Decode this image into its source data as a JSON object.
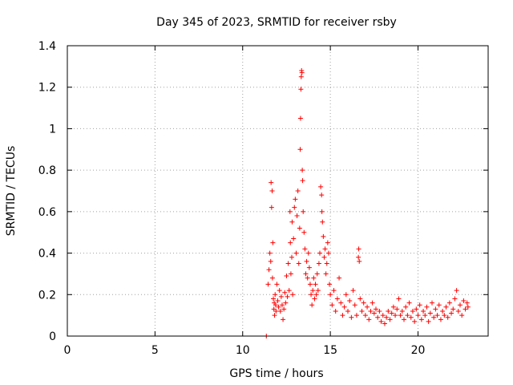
{
  "chart_data": {
    "type": "scatter",
    "title": "Day 345 of 2023, SRMTID for receiver rsby",
    "xlabel": "GPS time / hours",
    "ylabel": "SRMTID / TECUs",
    "xlim": [
      0,
      24
    ],
    "ylim": [
      0,
      1.4
    ],
    "xticks": [
      0,
      5,
      10,
      15,
      20
    ],
    "xtick_labels": [
      "0",
      "5",
      "10",
      "15",
      "20"
    ],
    "yticks": [
      0,
      0.2,
      0.4,
      0.6,
      0.8,
      1.0,
      1.2,
      1.4
    ],
    "ytick_labels": [
      "0",
      "0.2",
      "0.4",
      "0.6",
      "0.8",
      "1",
      "1.2",
      "1.4"
    ],
    "grid": true,
    "marker": "plus",
    "color": "#ff0000",
    "series": [
      {
        "name": "SRMTID",
        "points": [
          [
            11.35,
            0.0
          ],
          [
            11.45,
            0.25
          ],
          [
            11.5,
            0.32
          ],
          [
            11.55,
            0.4
          ],
          [
            11.6,
            0.36
          ],
          [
            11.62,
            0.74
          ],
          [
            11.65,
            0.62
          ],
          [
            11.68,
            0.7
          ],
          [
            11.7,
            0.28
          ],
          [
            11.72,
            0.45
          ],
          [
            11.75,
            0.18
          ],
          [
            11.78,
            0.13
          ],
          [
            11.8,
            0.16
          ],
          [
            11.82,
            0.1
          ],
          [
            11.85,
            0.2
          ],
          [
            11.88,
            0.15
          ],
          [
            11.9,
            0.12
          ],
          [
            11.95,
            0.25
          ],
          [
            12.0,
            0.17
          ],
          [
            12.05,
            0.14
          ],
          [
            12.1,
            0.22
          ],
          [
            12.15,
            0.12
          ],
          [
            12.2,
            0.19
          ],
          [
            12.25,
            0.15
          ],
          [
            12.3,
            0.08
          ],
          [
            12.35,
            0.13
          ],
          [
            12.4,
            0.21
          ],
          [
            12.45,
            0.16
          ],
          [
            12.5,
            0.29
          ],
          [
            12.55,
            0.19
          ],
          [
            12.6,
            0.35
          ],
          [
            12.65,
            0.22
          ],
          [
            12.7,
            0.6
          ],
          [
            12.72,
            0.45
          ],
          [
            12.75,
            0.3
          ],
          [
            12.8,
            0.38
          ],
          [
            12.82,
            0.55
          ],
          [
            12.85,
            0.2
          ],
          [
            12.9,
            0.47
          ],
          [
            12.95,
            0.62
          ],
          [
            13.0,
            0.66
          ],
          [
            13.05,
            0.4
          ],
          [
            13.1,
            0.58
          ],
          [
            13.15,
            0.7
          ],
          [
            13.2,
            0.35
          ],
          [
            13.25,
            0.52
          ],
          [
            13.28,
            0.9
          ],
          [
            13.3,
            1.05
          ],
          [
            13.32,
            1.19
          ],
          [
            13.34,
            1.25
          ],
          [
            13.36,
            1.28
          ],
          [
            13.38,
            1.27
          ],
          [
            13.4,
            0.8
          ],
          [
            13.42,
            0.75
          ],
          [
            13.45,
            0.6
          ],
          [
            13.5,
            0.5
          ],
          [
            13.55,
            0.42
          ],
          [
            13.6,
            0.3
          ],
          [
            13.65,
            0.36
          ],
          [
            13.7,
            0.28
          ],
          [
            13.75,
            0.4
          ],
          [
            13.8,
            0.33
          ],
          [
            13.85,
            0.25
          ],
          [
            13.9,
            0.2
          ],
          [
            13.95,
            0.15
          ],
          [
            14.0,
            0.22
          ],
          [
            14.05,
            0.28
          ],
          [
            14.1,
            0.18
          ],
          [
            14.15,
            0.25
          ],
          [
            14.2,
            0.2
          ],
          [
            14.25,
            0.3
          ],
          [
            14.3,
            0.22
          ],
          [
            14.35,
            0.35
          ],
          [
            14.4,
            0.4
          ],
          [
            14.45,
            0.72
          ],
          [
            14.5,
            0.68
          ],
          [
            14.52,
            0.6
          ],
          [
            14.55,
            0.55
          ],
          [
            14.6,
            0.48
          ],
          [
            14.65,
            0.38
          ],
          [
            14.7,
            0.42
          ],
          [
            14.75,
            0.3
          ],
          [
            14.8,
            0.35
          ],
          [
            14.85,
            0.45
          ],
          [
            14.9,
            0.4
          ],
          [
            14.95,
            0.25
          ],
          [
            15.0,
            0.2
          ],
          [
            15.1,
            0.15
          ],
          [
            15.2,
            0.22
          ],
          [
            15.3,
            0.12
          ],
          [
            15.4,
            0.18
          ],
          [
            15.5,
            0.28
          ],
          [
            15.6,
            0.16
          ],
          [
            15.7,
            0.1
          ],
          [
            15.8,
            0.14
          ],
          [
            15.9,
            0.2
          ],
          [
            16.0,
            0.12
          ],
          [
            16.1,
            0.17
          ],
          [
            16.2,
            0.09
          ],
          [
            16.3,
            0.22
          ],
          [
            16.4,
            0.15
          ],
          [
            16.5,
            0.1
          ],
          [
            16.6,
            0.38
          ],
          [
            16.62,
            0.42
          ],
          [
            16.65,
            0.36
          ],
          [
            16.7,
            0.18
          ],
          [
            16.8,
            0.12
          ],
          [
            16.9,
            0.16
          ],
          [
            17.0,
            0.1
          ],
          [
            17.1,
            0.14
          ],
          [
            17.2,
            0.08
          ],
          [
            17.3,
            0.12
          ],
          [
            17.4,
            0.16
          ],
          [
            17.5,
            0.11
          ],
          [
            17.6,
            0.13
          ],
          [
            17.7,
            0.09
          ],
          [
            17.8,
            0.12
          ],
          [
            17.9,
            0.07
          ],
          [
            18.0,
            0.1
          ],
          [
            18.1,
            0.06
          ],
          [
            18.2,
            0.09
          ],
          [
            18.3,
            0.12
          ],
          [
            18.4,
            0.08
          ],
          [
            18.5,
            0.11
          ],
          [
            18.6,
            0.14
          ],
          [
            18.7,
            0.1
          ],
          [
            18.8,
            0.13
          ],
          [
            18.9,
            0.18
          ],
          [
            19.0,
            0.1
          ],
          [
            19.1,
            0.12
          ],
          [
            19.2,
            0.08
          ],
          [
            19.3,
            0.14
          ],
          [
            19.4,
            0.1
          ],
          [
            19.5,
            0.16
          ],
          [
            19.6,
            0.09
          ],
          [
            19.7,
            0.12
          ],
          [
            19.8,
            0.07
          ],
          [
            19.9,
            0.13
          ],
          [
            20.0,
            0.1
          ],
          [
            20.1,
            0.15
          ],
          [
            20.2,
            0.08
          ],
          [
            20.3,
            0.12
          ],
          [
            20.4,
            0.1
          ],
          [
            20.5,
            0.14
          ],
          [
            20.6,
            0.07
          ],
          [
            20.7,
            0.11
          ],
          [
            20.8,
            0.16
          ],
          [
            20.9,
            0.09
          ],
          [
            21.0,
            0.13
          ],
          [
            21.1,
            0.1
          ],
          [
            21.2,
            0.15
          ],
          [
            21.3,
            0.08
          ],
          [
            21.4,
            0.12
          ],
          [
            21.5,
            0.1
          ],
          [
            21.6,
            0.14
          ],
          [
            21.7,
            0.09
          ],
          [
            21.8,
            0.16
          ],
          [
            21.9,
            0.11
          ],
          [
            22.0,
            0.13
          ],
          [
            22.1,
            0.18
          ],
          [
            22.2,
            0.22
          ],
          [
            22.3,
            0.12
          ],
          [
            22.4,
            0.15
          ],
          [
            22.5,
            0.1
          ],
          [
            22.6,
            0.17
          ],
          [
            22.7,
            0.13
          ],
          [
            22.8,
            0.16
          ],
          [
            22.85,
            0.14
          ]
        ]
      }
    ]
  }
}
